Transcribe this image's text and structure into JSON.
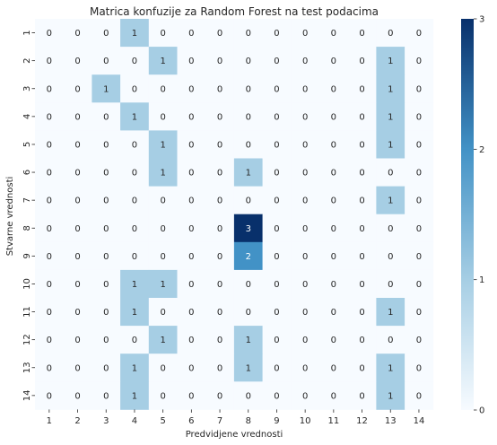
{
  "chart_data": {
    "type": "heatmap",
    "title": "Matrica konfuzije za Random Forest na test podacima",
    "xlabel": "Predvidjene vrednosti",
    "ylabel": "Stvarne vrednosti",
    "x_categories": [
      "1",
      "2",
      "3",
      "4",
      "5",
      "6",
      "7",
      "8",
      "9",
      "10",
      "11",
      "12",
      "13",
      "14"
    ],
    "y_categories": [
      "1",
      "2",
      "3",
      "4",
      "5",
      "6",
      "7",
      "8",
      "9",
      "10",
      "11",
      "12",
      "13",
      "14"
    ],
    "values": [
      [
        0,
        0,
        0,
        1,
        0,
        0,
        0,
        0,
        0,
        0,
        0,
        0,
        0,
        0
      ],
      [
        0,
        0,
        0,
        0,
        1,
        0,
        0,
        0,
        0,
        0,
        0,
        0,
        1,
        0
      ],
      [
        0,
        0,
        1,
        0,
        0,
        0,
        0,
        0,
        0,
        0,
        0,
        0,
        1,
        0
      ],
      [
        0,
        0,
        0,
        1,
        0,
        0,
        0,
        0,
        0,
        0,
        0,
        0,
        1,
        0
      ],
      [
        0,
        0,
        0,
        0,
        1,
        0,
        0,
        0,
        0,
        0,
        0,
        0,
        1,
        0
      ],
      [
        0,
        0,
        0,
        0,
        1,
        0,
        0,
        1,
        0,
        0,
        0,
        0,
        0,
        0
      ],
      [
        0,
        0,
        0,
        0,
        0,
        0,
        0,
        0,
        0,
        0,
        0,
        0,
        1,
        0
      ],
      [
        0,
        0,
        0,
        0,
        0,
        0,
        0,
        3,
        0,
        0,
        0,
        0,
        0,
        0
      ],
      [
        0,
        0,
        0,
        0,
        0,
        0,
        0,
        2,
        0,
        0,
        0,
        0,
        0,
        0
      ],
      [
        0,
        0,
        0,
        1,
        1,
        0,
        0,
        0,
        0,
        0,
        0,
        0,
        0,
        0
      ],
      [
        0,
        0,
        0,
        1,
        0,
        0,
        0,
        0,
        0,
        0,
        0,
        0,
        1,
        0
      ],
      [
        0,
        0,
        0,
        0,
        1,
        0,
        0,
        1,
        0,
        0,
        0,
        0,
        0,
        0
      ],
      [
        0,
        0,
        0,
        1,
        0,
        0,
        0,
        1,
        0,
        0,
        0,
        0,
        1,
        0
      ],
      [
        0,
        0,
        0,
        1,
        0,
        0,
        0,
        0,
        0,
        0,
        0,
        0,
        1,
        0
      ]
    ],
    "vmin": 0,
    "vmax": 3,
    "colormap": "Blues",
    "colorbar_ticks": [
      0,
      1,
      2,
      3
    ],
    "grid": false
  }
}
